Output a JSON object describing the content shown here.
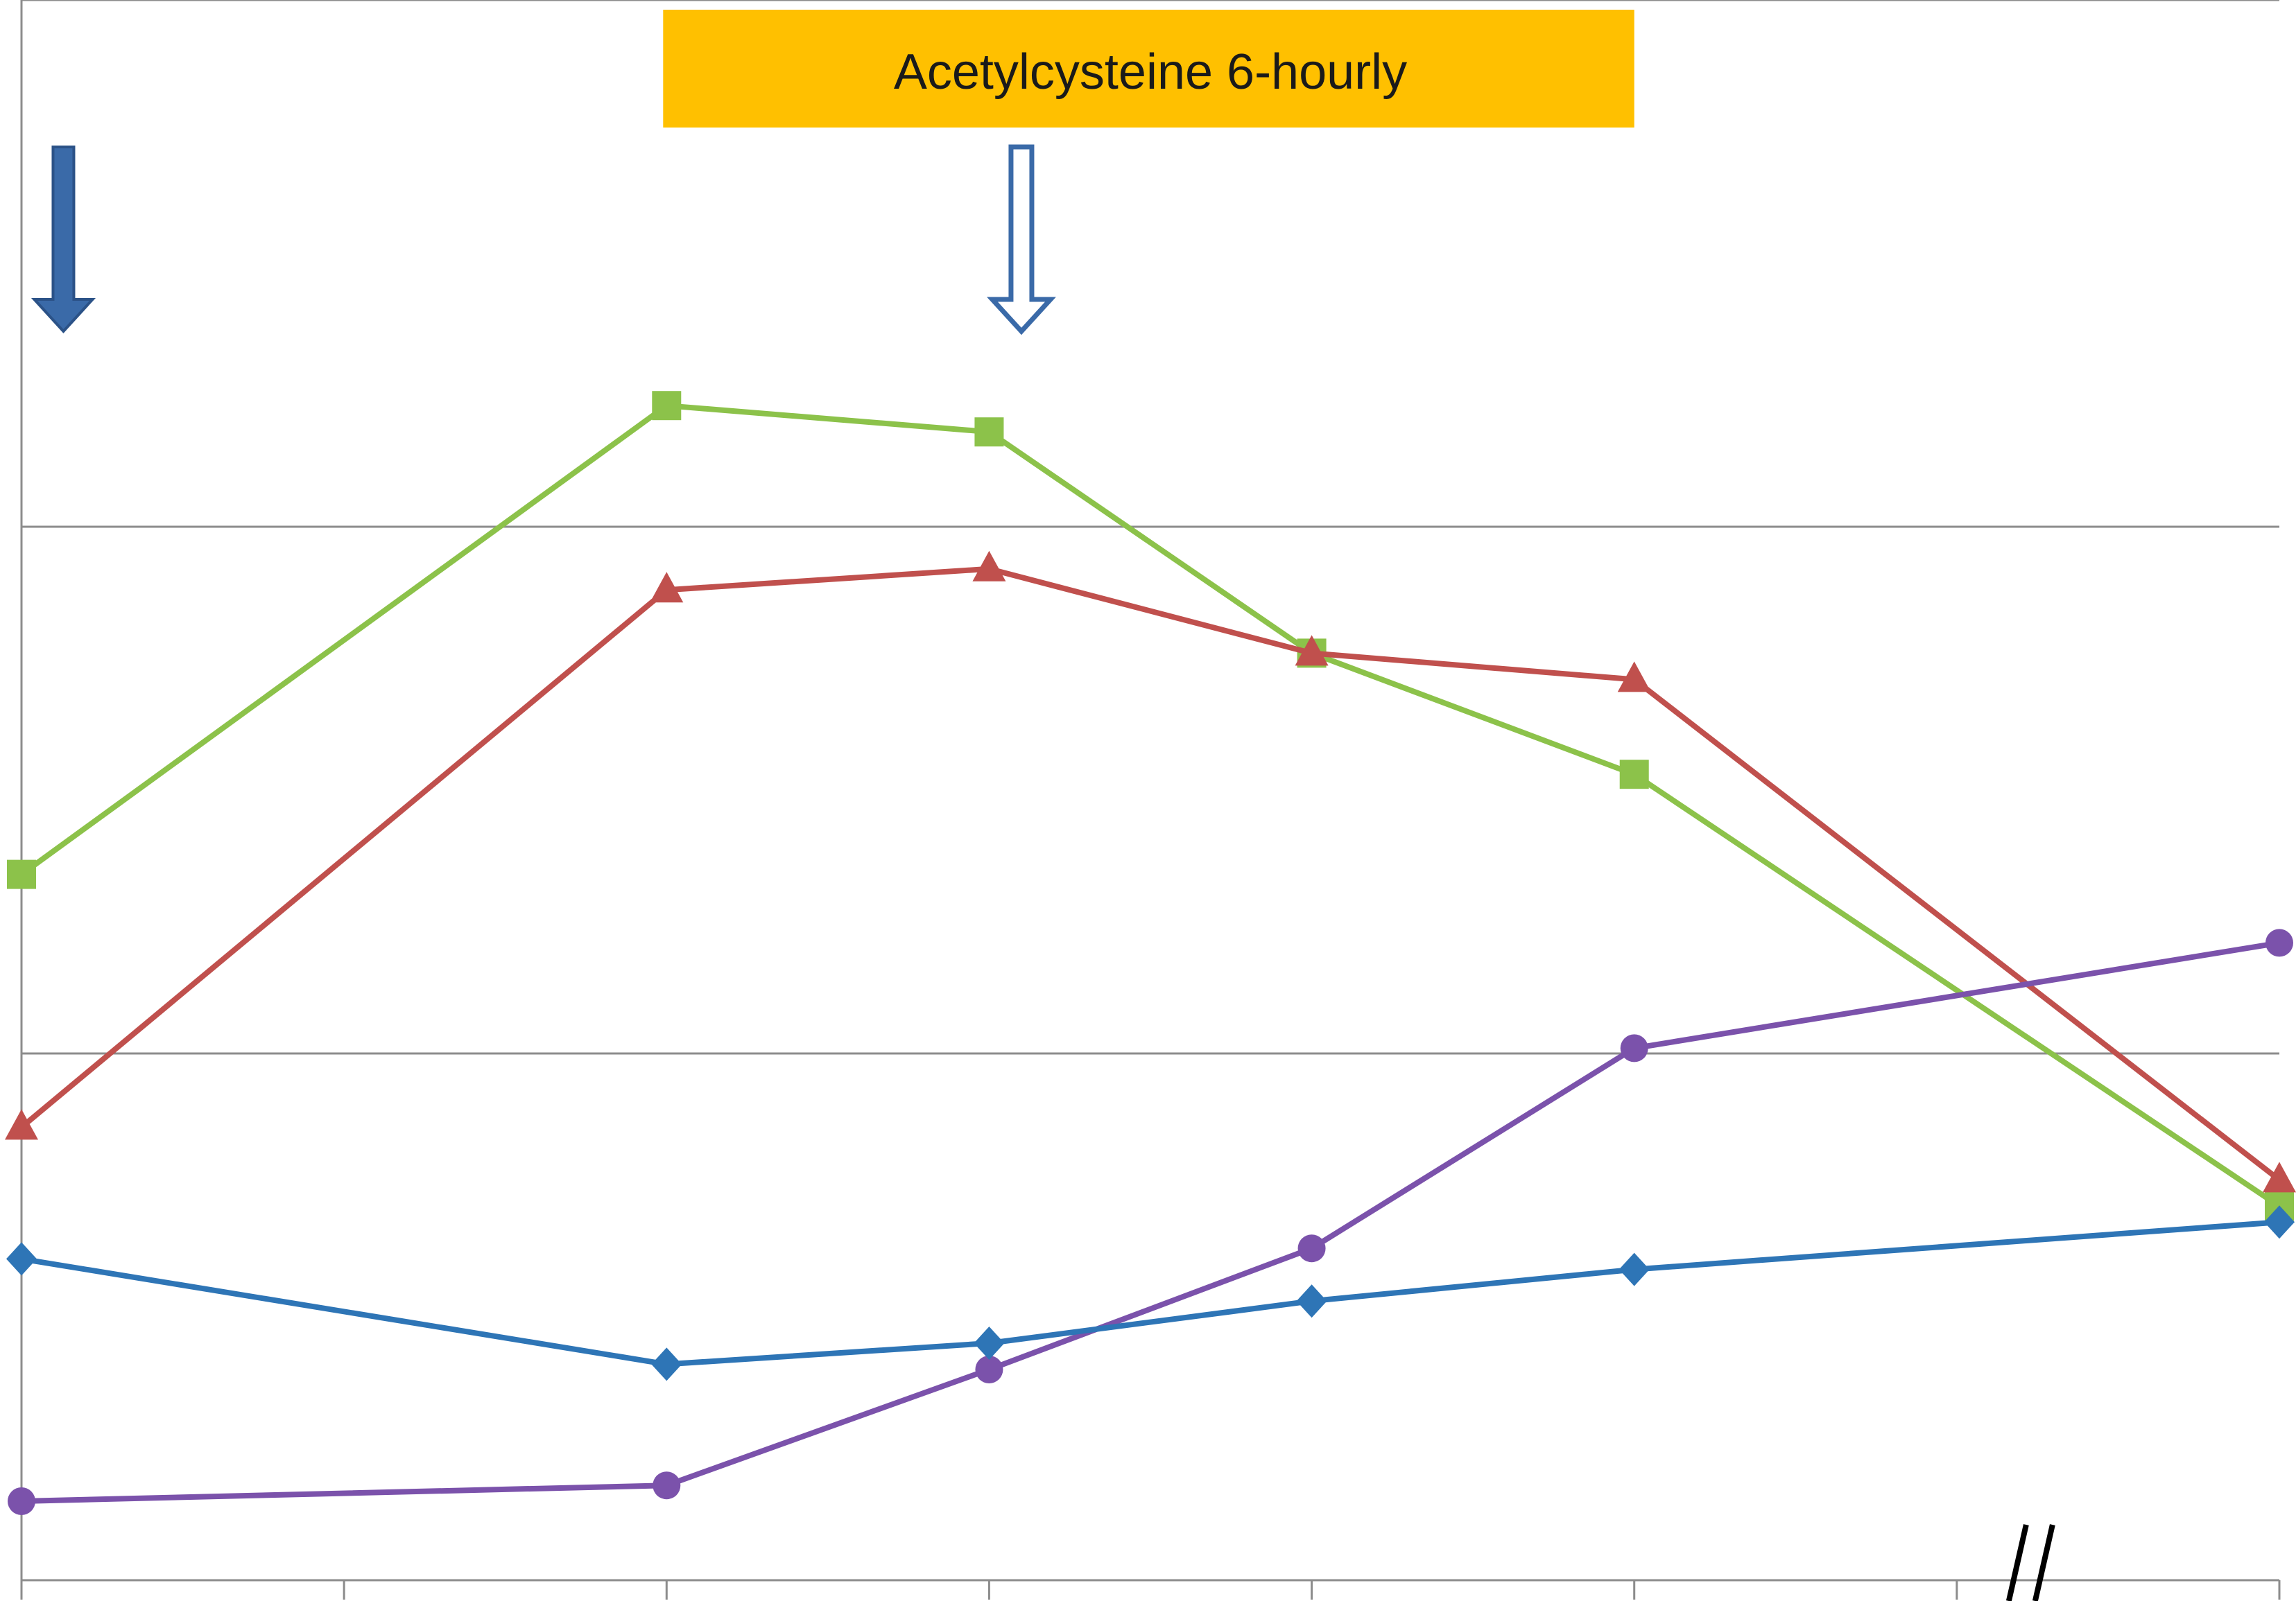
{
  "chart_data": {
    "type": "line",
    "title": "",
    "xlabel": "",
    "ylabel": "",
    "x": [
      0,
      1,
      2,
      3,
      4,
      5,
      6,
      7
    ],
    "x_tick_count": 8,
    "axis_break_between_x": [
      5,
      7
    ],
    "ylim": [
      0,
      30
    ],
    "y_gridlines": [
      10,
      20,
      30
    ],
    "grid": true,
    "legend": "none",
    "annotation": {
      "text": "Acetylcysteine 6-hourly",
      "x_start": 2,
      "x_end": 5,
      "background": "#FFC000"
    },
    "arrows": [
      {
        "name": "filled-arrow",
        "x": 0.13,
        "style": "filled",
        "color": "#3A6AA8"
      },
      {
        "name": "outline-arrow",
        "x": 3.1,
        "style": "outline",
        "color": "#3A6AA8"
      }
    ],
    "series": [
      {
        "key": "green",
        "marker": "square",
        "color": "#8CC24A",
        "points": [
          [
            0,
            13.4
          ],
          [
            2,
            22.3
          ],
          [
            3,
            21.8
          ],
          [
            4,
            17.6
          ],
          [
            5,
            15.3
          ],
          [
            7,
            7.1
          ]
        ]
      },
      {
        "key": "red",
        "marker": "triangle",
        "color": "#C0504D",
        "points": [
          [
            0,
            8.6
          ],
          [
            2,
            18.8
          ],
          [
            3,
            19.2
          ],
          [
            4,
            17.6
          ],
          [
            5,
            17.1
          ],
          [
            7,
            7.6
          ]
        ]
      },
      {
        "key": "purple",
        "marker": "circle",
        "color": "#7B52AB",
        "points": [
          [
            0,
            1.5
          ],
          [
            2,
            1.8
          ],
          [
            3,
            4.0
          ],
          [
            4,
            6.3
          ],
          [
            5,
            10.1
          ],
          [
            7,
            12.1
          ]
        ]
      },
      {
        "key": "blue",
        "marker": "diamond",
        "color": "#2E75B6",
        "points": [
          [
            0,
            6.1
          ],
          [
            2,
            4.1
          ],
          [
            3,
            4.5
          ],
          [
            4,
            5.3
          ],
          [
            5,
            5.9
          ],
          [
            7,
            6.8
          ]
        ]
      }
    ]
  }
}
